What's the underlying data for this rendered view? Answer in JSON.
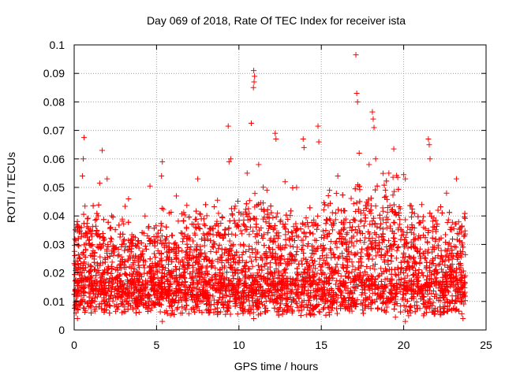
{
  "chart_data": {
    "type": "scatter",
    "title": "Day 069 of 2018, Rate Of TEC Index for receiver ista",
    "xlabel": "GPS time / hours",
    "ylabel": "ROTI / TECUs",
    "xlim": [
      0,
      25
    ],
    "ylim": [
      0,
      0.1
    ],
    "x_ticks": [
      0,
      5,
      10,
      15,
      20,
      25
    ],
    "x_tick_labels": [
      "0",
      "5",
      "10",
      "15",
      "20",
      "25"
    ],
    "y_ticks": [
      0,
      0.01,
      0.02,
      0.03,
      0.04,
      0.05,
      0.06,
      0.07,
      0.08,
      0.09,
      0.1
    ],
    "y_tick_labels": [
      "0",
      "0.01",
      "0.02",
      "0.03",
      "0.04",
      "0.05",
      "0.06",
      "0.07",
      "0.08",
      "0.09",
      "0.1"
    ],
    "grid": true,
    "marker": "+",
    "series": [
      {
        "name": "ROTI",
        "color": "#ff0000",
        "x_range": [
          0,
          23.75
        ],
        "typical_range": [
          0.005,
          0.035
        ],
        "points": [
          [
            17.1,
            0.0965
          ],
          [
            17.15,
            0.083
          ],
          [
            17.2,
            0.08
          ],
          [
            10.9,
            0.091
          ],
          [
            10.95,
            0.089
          ],
          [
            10.92,
            0.087
          ],
          [
            10.88,
            0.085
          ],
          [
            18.1,
            0.0765
          ],
          [
            18.15,
            0.074
          ],
          [
            18.2,
            0.071
          ],
          [
            10.75,
            0.0725
          ],
          [
            9.35,
            0.0715
          ],
          [
            14.8,
            0.0715
          ],
          [
            0.6,
            0.0675
          ],
          [
            1.7,
            0.063
          ],
          [
            12.2,
            0.069
          ],
          [
            12.25,
            0.067
          ],
          [
            13.9,
            0.067
          ],
          [
            13.95,
            0.064
          ],
          [
            14.85,
            0.066
          ],
          [
            21.5,
            0.067
          ],
          [
            21.55,
            0.065
          ],
          [
            19.4,
            0.0635
          ],
          [
            17.3,
            0.062
          ],
          [
            18.3,
            0.06
          ],
          [
            0.55,
            0.06
          ],
          [
            5.35,
            0.059
          ],
          [
            9.5,
            0.06
          ],
          [
            9.4,
            0.059
          ],
          [
            0.5,
            0.054
          ],
          [
            1.55,
            0.0515
          ],
          [
            4.6,
            0.0505
          ],
          [
            5.3,
            0.054
          ],
          [
            7.5,
            0.053
          ],
          [
            10.5,
            0.055
          ],
          [
            11.2,
            0.058
          ],
          [
            12.8,
            0.052
          ],
          [
            13.5,
            0.05
          ],
          [
            16.0,
            0.054
          ],
          [
            17.9,
            0.058
          ],
          [
            19.1,
            0.055
          ],
          [
            20.0,
            0.0545
          ],
          [
            20.1,
            0.053
          ],
          [
            21.6,
            0.06
          ],
          [
            23.2,
            0.053
          ],
          [
            2.0,
            0.053
          ],
          [
            3.3,
            0.046
          ],
          [
            4.3,
            0.04
          ],
          [
            6.2,
            0.047
          ],
          [
            8.7,
            0.0455
          ],
          [
            11.7,
            0.049
          ],
          [
            15.5,
            0.049
          ],
          [
            22.6,
            0.048
          ],
          [
            20.3,
            0.005
          ],
          [
            20.1,
            0.003
          ],
          [
            5.35,
            0.003
          ],
          [
            10.9,
            0.004
          ],
          [
            0.2,
            0.004
          ],
          [
            19.5,
            0.0045
          ],
          [
            23.6,
            0.004
          ]
        ]
      }
    ]
  }
}
